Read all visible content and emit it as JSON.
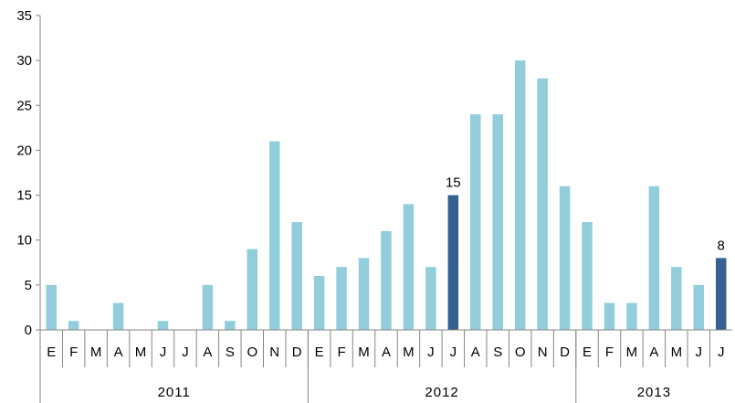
{
  "chart_data": {
    "type": "bar",
    "title": "",
    "xlabel": "",
    "ylabel": "",
    "ylim": [
      0,
      35
    ],
    "yticks": [
      0,
      5,
      10,
      15,
      20,
      25,
      30,
      35
    ],
    "grid": false,
    "legend": "none",
    "colors": {
      "normal": "#92cddc",
      "highlight": "#366092",
      "axis": "#868686"
    },
    "categories": [
      "E",
      "F",
      "M",
      "A",
      "M",
      "J",
      "J",
      "A",
      "S",
      "O",
      "N",
      "D",
      "E",
      "F",
      "M",
      "A",
      "M",
      "J",
      "J",
      "A",
      "S",
      "O",
      "N",
      "D",
      "E",
      "F",
      "M",
      "A",
      "M",
      "J",
      "J"
    ],
    "values": [
      5,
      1,
      0,
      3,
      0,
      1,
      0,
      5,
      1,
      9,
      21,
      12,
      6,
      7,
      8,
      11,
      14,
      7,
      15,
      24,
      24,
      30,
      28,
      16,
      12,
      3,
      3,
      16,
      7,
      5,
      8
    ],
    "highlighted_indices": [
      18,
      30
    ],
    "data_labels": {
      "18": "15",
      "30": "8"
    },
    "groups": [
      {
        "label": "2011",
        "start": 0,
        "count": 12
      },
      {
        "label": "2012",
        "start": 12,
        "count": 12
      },
      {
        "label": "2013",
        "start": 24,
        "count": 7
      }
    ]
  }
}
